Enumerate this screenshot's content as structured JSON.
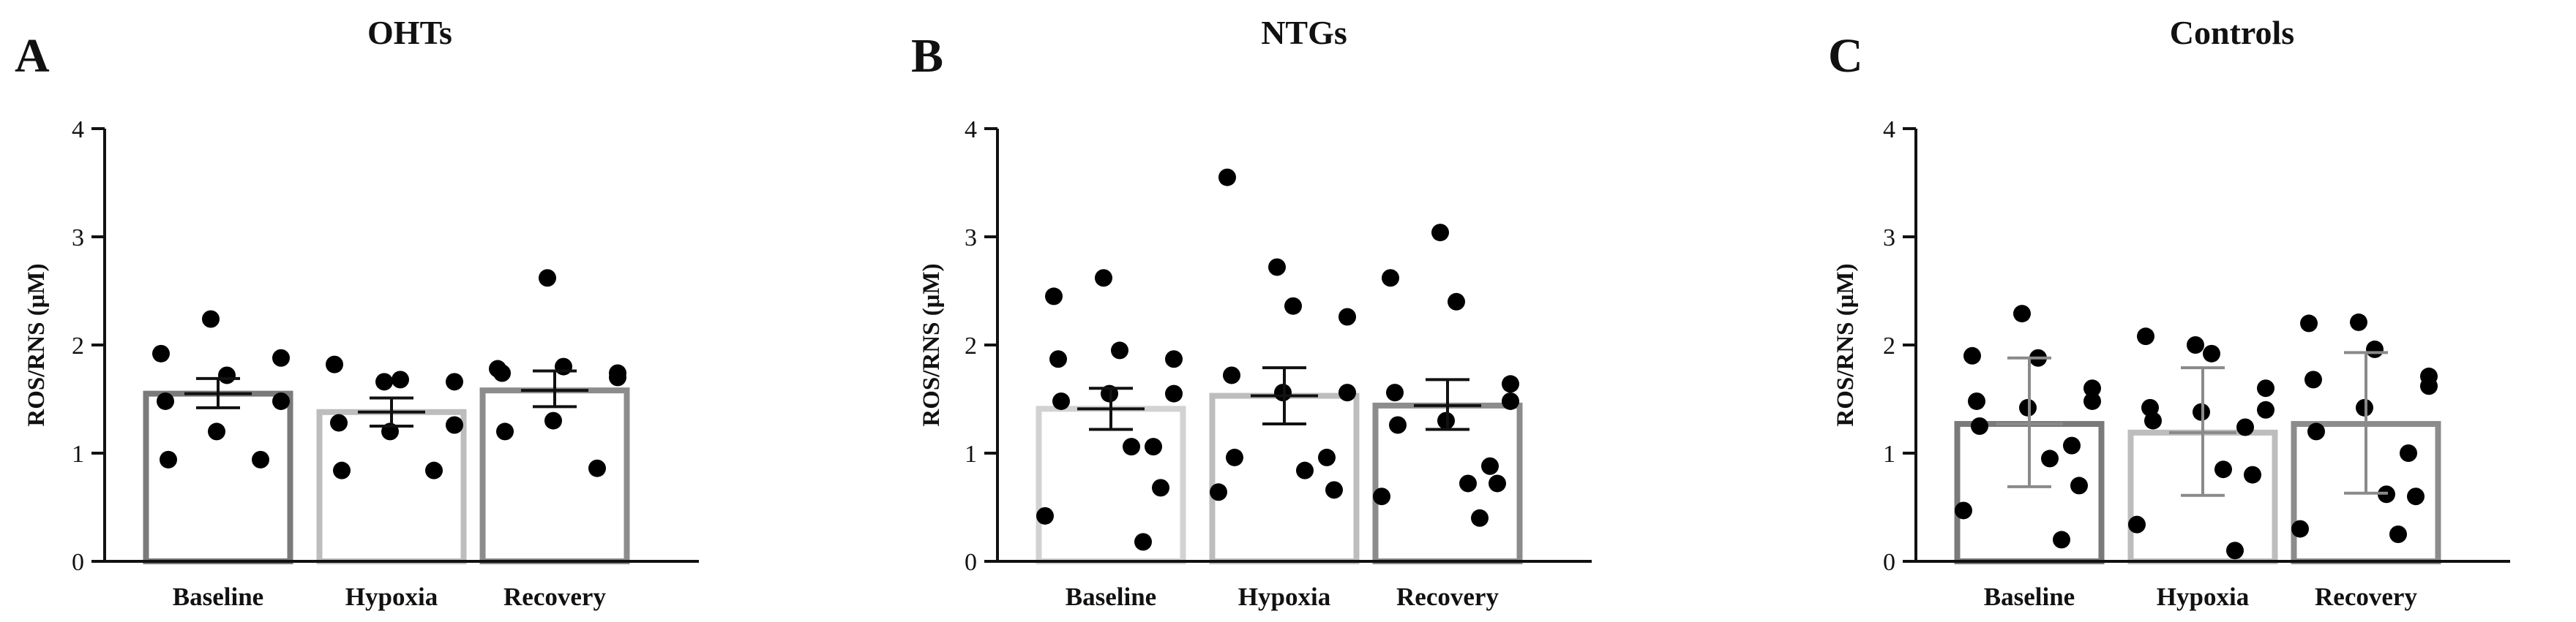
{
  "chart_data": [
    {
      "type": "bar",
      "panel": "A",
      "title": "OHTs",
      "ylabel": "ROS/RNS  (μM)",
      "xlabel": "",
      "ylim": [
        0,
        4
      ],
      "yticks": [
        "0",
        "1",
        "2",
        "3",
        "4"
      ],
      "categories": [
        "Baseline",
        "Hypoxia",
        "Recovery"
      ],
      "values": [
        1.55,
        1.38,
        1.58
      ],
      "error": [
        [
          1.42,
          1.69
        ],
        [
          1.25,
          1.51
        ],
        [
          1.43,
          1.76
        ]
      ],
      "bar_colors": [
        "#7a7a7a",
        "#bdbdbd",
        "#8c8c8c"
      ],
      "points": [
        [
          2.24,
          1.92,
          1.72,
          1.88,
          1.48,
          1.48,
          1.2,
          0.94,
          0.94
        ],
        [
          1.82,
          1.66,
          1.68,
          1.66,
          1.28,
          1.26,
          1.2,
          0.84,
          0.84
        ],
        [
          2.62,
          1.78,
          1.8,
          1.74,
          1.74,
          1.7,
          1.3,
          1.2,
          0.86
        ]
      ]
    },
    {
      "type": "bar",
      "panel": "B",
      "title": "NTGs",
      "ylabel": "ROS/RNS  (μM)",
      "xlabel": "",
      "ylim": [
        0,
        4
      ],
      "yticks": [
        "0",
        "1",
        "2",
        "3",
        "4"
      ],
      "categories": [
        "Baseline",
        "Hypoxia",
        "Recovery"
      ],
      "values": [
        1.41,
        1.53,
        1.44
      ],
      "error": [
        [
          1.22,
          1.6
        ],
        [
          1.27,
          1.79
        ],
        [
          1.22,
          1.68
        ]
      ],
      "bar_colors": [
        "#d2d2d2",
        "#bdbdbd",
        "#8c8c8c"
      ],
      "points": [
        [
          2.62,
          2.45,
          1.95,
          1.87,
          1.87,
          1.55,
          1.55,
          1.48,
          1.06,
          1.06,
          0.68,
          0.42,
          0.18
        ],
        [
          3.55,
          2.72,
          2.36,
          2.26,
          1.72,
          1.56,
          1.56,
          0.96,
          0.96,
          0.84,
          0.66,
          0.64
        ],
        [
          3.04,
          2.62,
          2.4,
          1.64,
          1.56,
          1.48,
          1.3,
          1.26,
          0.88,
          0.72,
          0.72,
          0.6,
          0.4
        ]
      ]
    },
    {
      "type": "bar",
      "panel": "C",
      "title": "Controls",
      "ylabel": "ROS/RNS  (μM)",
      "xlabel": "",
      "ylim": [
        0,
        4
      ],
      "yticks": [
        "0",
        "1",
        "2",
        "3",
        "4"
      ],
      "categories": [
        "Baseline",
        "Hypoxia",
        "Recovery"
      ],
      "values": [
        1.27,
        1.19,
        1.27
      ],
      "error": [
        [
          0.69,
          1.88
        ],
        [
          0.61,
          1.79
        ],
        [
          0.63,
          1.93
        ]
      ],
      "bar_colors": [
        "#7a7a7a",
        "#bdbdbd",
        "#8c8c8c"
      ],
      "points": [
        [
          2.29,
          1.9,
          1.88,
          1.6,
          1.48,
          1.48,
          1.42,
          1.25,
          1.07,
          0.95,
          0.7,
          0.47,
          0.2
        ],
        [
          2.08,
          2.0,
          1.92,
          1.6,
          1.42,
          1.4,
          1.38,
          1.3,
          1.24,
          0.85,
          0.8,
          0.34,
          0.1
        ],
        [
          2.21,
          2.2,
          1.96,
          1.71,
          1.68,
          1.62,
          1.42,
          1.2,
          1.0,
          0.62,
          0.6,
          0.3,
          0.25
        ]
      ]
    }
  ]
}
